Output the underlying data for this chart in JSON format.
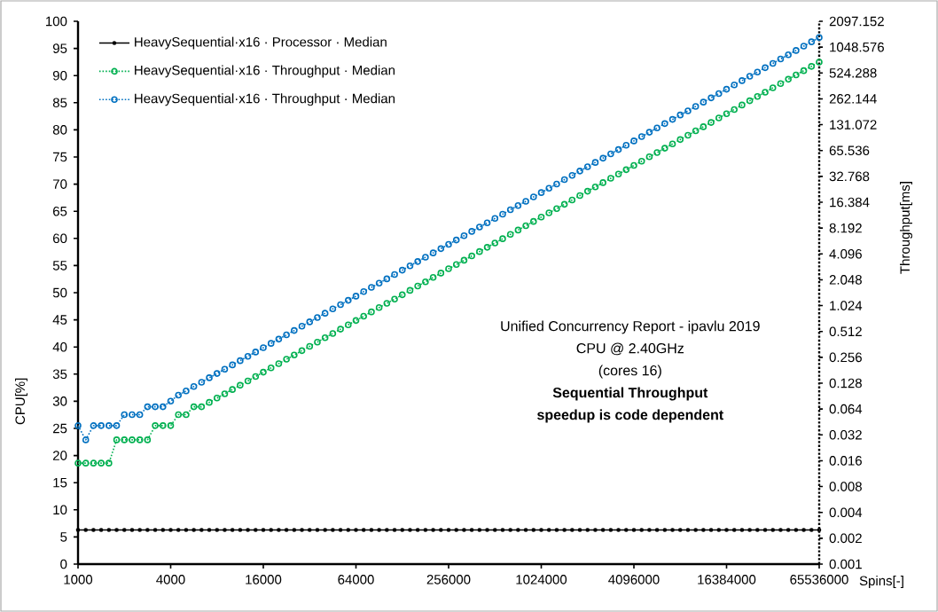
{
  "chart_data": {
    "type": "line",
    "xlabel": "Spins[-]",
    "ylabel": "CPU[%]",
    "y2label": "Throughput[ms]",
    "log": "y2",
    "categories": [
      "1000",
      null,
      null,
      null,
      null,
      null,
      null,
      null,
      null,
      null,
      null,
      null,
      "4000",
      null,
      null,
      null,
      null,
      null,
      null,
      null,
      null,
      null,
      null,
      null,
      "16000",
      null,
      null,
      null,
      null,
      null,
      null,
      null,
      null,
      null,
      null,
      null,
      "64000",
      null,
      null,
      null,
      null,
      null,
      null,
      null,
      null,
      null,
      null,
      null,
      "256000",
      null,
      null,
      null,
      null,
      null,
      null,
      null,
      null,
      null,
      null,
      null,
      "1024000",
      null,
      null,
      null,
      null,
      null,
      null,
      null,
      null,
      null,
      null,
      null,
      "4096000",
      null,
      null,
      null,
      null,
      null,
      null,
      null,
      null,
      null,
      null,
      null,
      "16384000",
      null,
      null,
      null,
      null,
      null,
      null,
      null,
      null,
      null,
      null,
      null,
      "65536000"
    ],
    "ylim": [
      0,
      100
    ],
    "yticks": [
      0,
      5,
      10,
      15,
      20,
      25,
      30,
      35,
      40,
      45,
      50,
      55,
      60,
      65,
      70,
      75,
      80,
      85,
      90,
      95,
      100
    ],
    "y2lim": [
      0.001,
      2097.152
    ],
    "y2ticks": [
      0.001,
      0.002,
      0.004,
      0.008,
      0.016,
      0.032,
      0.064,
      0.128,
      0.256,
      0.512,
      1.024,
      2.048,
      4.096,
      8.192,
      16.384,
      32.768,
      65.536,
      131.072,
      262.144,
      524.288,
      1048.576,
      2097.152
    ],
    "grid": false,
    "legend": "top left",
    "series": [
      {
        "name": "HeavySequential·x16 · Processor · Median",
        "color": "#000000",
        "marker": "circle",
        "line_style": "solid",
        "values": [
          6.3,
          6.3,
          6.3,
          6.3,
          6.3,
          6.3,
          6.3,
          6.3,
          6.3,
          6.3,
          6.3,
          6.3,
          6.3,
          6.3,
          6.3,
          6.3,
          6.3,
          6.3,
          6.3,
          6.3,
          6.3,
          6.3,
          6.3,
          6.3,
          6.3,
          6.3,
          6.3,
          6.3,
          6.3,
          6.3,
          6.3,
          6.3,
          6.3,
          6.3,
          6.3,
          6.3,
          6.3,
          6.3,
          6.3,
          6.3,
          6.3,
          6.3,
          6.3,
          6.3,
          6.3,
          6.3,
          6.3,
          6.3,
          6.3,
          6.3,
          6.3,
          6.3,
          6.3,
          6.3,
          6.3,
          6.3,
          6.3,
          6.3,
          6.3,
          6.3,
          6.3,
          6.3,
          6.3,
          6.3,
          6.3,
          6.3,
          6.3,
          6.3,
          6.3,
          6.3,
          6.3,
          6.3,
          6.3,
          6.3,
          6.3,
          6.3,
          6.3,
          6.3,
          6.3,
          6.3,
          6.3,
          6.3,
          6.3,
          6.3,
          6.3,
          6.3,
          6.3,
          6.3,
          6.3,
          6.3,
          6.3,
          6.3,
          6.3,
          6.3,
          6.3,
          6.3,
          6.3
        ]
      },
      {
        "name": "HeavySequential·x16 · Throughput · Median",
        "color": "#00b050",
        "marker": "circle",
        "line_style": "dotted",
        "axis": "y2",
        "values": [
          0.015,
          0.015,
          0.015,
          0.015,
          0.015,
          0.028,
          0.028,
          0.028,
          0.028,
          0.028,
          0.041,
          0.041,
          0.041,
          0.055,
          0.055,
          0.068,
          0.068,
          0.0765,
          0.0858,
          0.0963,
          0.108,
          0.121,
          0.136,
          0.153,
          0.172,
          0.193,
          0.216,
          0.243,
          0.272,
          0.306,
          0.343,
          0.385,
          0.433,
          0.485,
          0.545,
          0.612,
          0.687,
          0.771,
          0.865,
          0.971,
          1.09,
          1.22,
          1.37,
          1.54,
          1.73,
          1.94,
          2.18,
          2.45,
          2.75,
          3.08,
          3.46,
          3.88,
          4.36,
          4.89,
          5.49,
          6.16,
          6.92,
          7.77,
          8.72,
          9.79,
          11.0,
          12.3,
          13.8,
          15.5,
          17.4,
          19.6,
          22.0,
          24.7,
          27.7,
          31.1,
          34.9,
          39.2,
          43.9,
          49.3,
          55.4,
          62.1,
          69.7,
          78.3,
          87.9,
          98.7,
          111,
          124,
          139,
          157,
          176,
          197,
          222,
          249,
          279,
          313,
          352,
          394,
          443,
          497,
          558,
          626,
          703
        ]
      },
      {
        "name": "HeavySequential·x16 · Throughput · Median",
        "color": "#0070c0",
        "marker": "circle",
        "line_style": "dotted",
        "axis": "y2",
        "values": [
          0.041,
          0.028,
          0.041,
          0.041,
          0.041,
          0.041,
          0.055,
          0.055,
          0.055,
          0.068,
          0.068,
          0.068,
          0.079,
          0.093,
          0.104,
          0.117,
          0.131,
          0.148,
          0.166,
          0.186,
          0.209,
          0.234,
          0.263,
          0.295,
          0.331,
          0.372,
          0.417,
          0.468,
          0.526,
          0.59,
          0.662,
          0.744,
          0.835,
          0.937,
          1.05,
          1.18,
          1.32,
          1.49,
          1.67,
          1.87,
          2.1,
          2.36,
          2.65,
          2.97,
          3.34,
          3.75,
          4.21,
          4.72,
          5.3,
          5.95,
          6.68,
          7.49,
          8.41,
          9.44,
          10.6,
          11.9,
          13.4,
          15.0,
          16.8,
          18.9,
          21.2,
          23.8,
          26.7,
          30.0,
          33.6,
          37.8,
          42.4,
          47.6,
          53.4,
          59.9,
          67.3,
          75.5,
          84.8,
          95.2,
          107,
          120,
          135,
          151,
          170,
          190,
          214,
          240,
          269,
          302,
          339,
          381,
          427,
          480,
          538,
          604,
          678,
          762,
          855,
          959,
          1077,
          1209,
          1357
        ]
      }
    ],
    "annotations": [
      "Unified Concurrency Report - ipavlu 2019",
      "CPU @ 2.40GHz",
      "(cores 16)",
      "Sequential Throughput",
      "speedup is code dependent"
    ]
  }
}
